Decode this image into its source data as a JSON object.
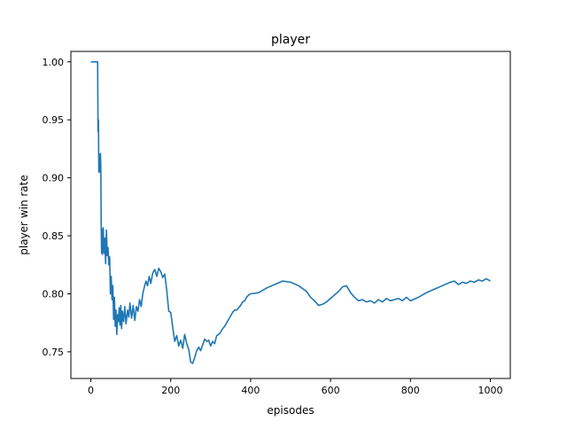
{
  "chart_data": {
    "type": "line",
    "title": "player",
    "xlabel": "episodes",
    "ylabel": "player win rate",
    "xlim": [
      -50,
      1050
    ],
    "ylim": [
      0.727,
      1.009
    ],
    "xticks": [
      0,
      200,
      400,
      600,
      800,
      1000
    ],
    "yticks": [
      0.75,
      0.8,
      0.85,
      0.9,
      0.95,
      1.0
    ],
    "xtick_labels": [
      "0",
      "200",
      "400",
      "600",
      "800",
      "1000"
    ],
    "ytick_labels": [
      "0.75",
      "0.80",
      "0.85",
      "0.90",
      "0.95",
      "1.00"
    ],
    "grid": false,
    "line_color": "#1f77b4",
    "series": [
      {
        "x": [
          0,
          17,
          18,
          19,
          20,
          22,
          23,
          24,
          25,
          26,
          27,
          28,
          29,
          31,
          33,
          35,
          37,
          39,
          41,
          43,
          45,
          47,
          49,
          51,
          53,
          55,
          57,
          59,
          61,
          63,
          65,
          67,
          69,
          71,
          73,
          75,
          77,
          79,
          82,
          85,
          88,
          92,
          95,
          98,
          102,
          106,
          110,
          114,
          118,
          122,
          126,
          130,
          134,
          138,
          142,
          146,
          150,
          155,
          160,
          165,
          170,
          175,
          180,
          185,
          190,
          195,
          200,
          205,
          210,
          215,
          220,
          225,
          230,
          235,
          240,
          245,
          250,
          255,
          260,
          265,
          270,
          275,
          280,
          285,
          290,
          295,
          300,
          305,
          310,
          315,
          320,
          325,
          330,
          335,
          340,
          345,
          350,
          355,
          360,
          365,
          370,
          375,
          380,
          385,
          390,
          395,
          400,
          420,
          440,
          460,
          480,
          500,
          520,
          540,
          550,
          560,
          570,
          580,
          590,
          600,
          610,
          620,
          630,
          640,
          650,
          660,
          670,
          680,
          690,
          700,
          710,
          720,
          730,
          740,
          750,
          760,
          770,
          780,
          790,
          800,
          820,
          840,
          860,
          880,
          900,
          910,
          920,
          930,
          940,
          950,
          960,
          970,
          980,
          990,
          1000
        ],
        "y": [
          1.0,
          1.0,
          0.94,
          0.95,
          0.905,
          0.92,
          0.905,
          0.921,
          0.908,
          0.855,
          0.835,
          0.856,
          0.834,
          0.857,
          0.835,
          0.848,
          0.826,
          0.855,
          0.833,
          0.84,
          0.825,
          0.832,
          0.8,
          0.815,
          0.795,
          0.807,
          0.778,
          0.797,
          0.772,
          0.786,
          0.765,
          0.782,
          0.776,
          0.788,
          0.773,
          0.79,
          0.77,
          0.785,
          0.776,
          0.789,
          0.774,
          0.786,
          0.78,
          0.792,
          0.779,
          0.79,
          0.777,
          0.789,
          0.785,
          0.795,
          0.789,
          0.8,
          0.806,
          0.811,
          0.807,
          0.815,
          0.809,
          0.818,
          0.821,
          0.815,
          0.822,
          0.819,
          0.814,
          0.817,
          0.803,
          0.785,
          0.784,
          0.771,
          0.759,
          0.764,
          0.755,
          0.76,
          0.753,
          0.765,
          0.757,
          0.752,
          0.741,
          0.74,
          0.745,
          0.751,
          0.754,
          0.751,
          0.756,
          0.761,
          0.759,
          0.76,
          0.755,
          0.759,
          0.757,
          0.764,
          0.765,
          0.767,
          0.77,
          0.772,
          0.775,
          0.778,
          0.781,
          0.784,
          0.786,
          0.786,
          0.788,
          0.79,
          0.793,
          0.794,
          0.797,
          0.799,
          0.8,
          0.801,
          0.805,
          0.808,
          0.811,
          0.81,
          0.807,
          0.802,
          0.797,
          0.794,
          0.79,
          0.791,
          0.793,
          0.796,
          0.799,
          0.802,
          0.806,
          0.807,
          0.801,
          0.797,
          0.794,
          0.795,
          0.793,
          0.794,
          0.792,
          0.795,
          0.793,
          0.796,
          0.794,
          0.795,
          0.796,
          0.794,
          0.797,
          0.794,
          0.797,
          0.801,
          0.804,
          0.807,
          0.81,
          0.811,
          0.808,
          0.81,
          0.809,
          0.811,
          0.81,
          0.812,
          0.811,
          0.813,
          0.811
        ]
      }
    ]
  }
}
